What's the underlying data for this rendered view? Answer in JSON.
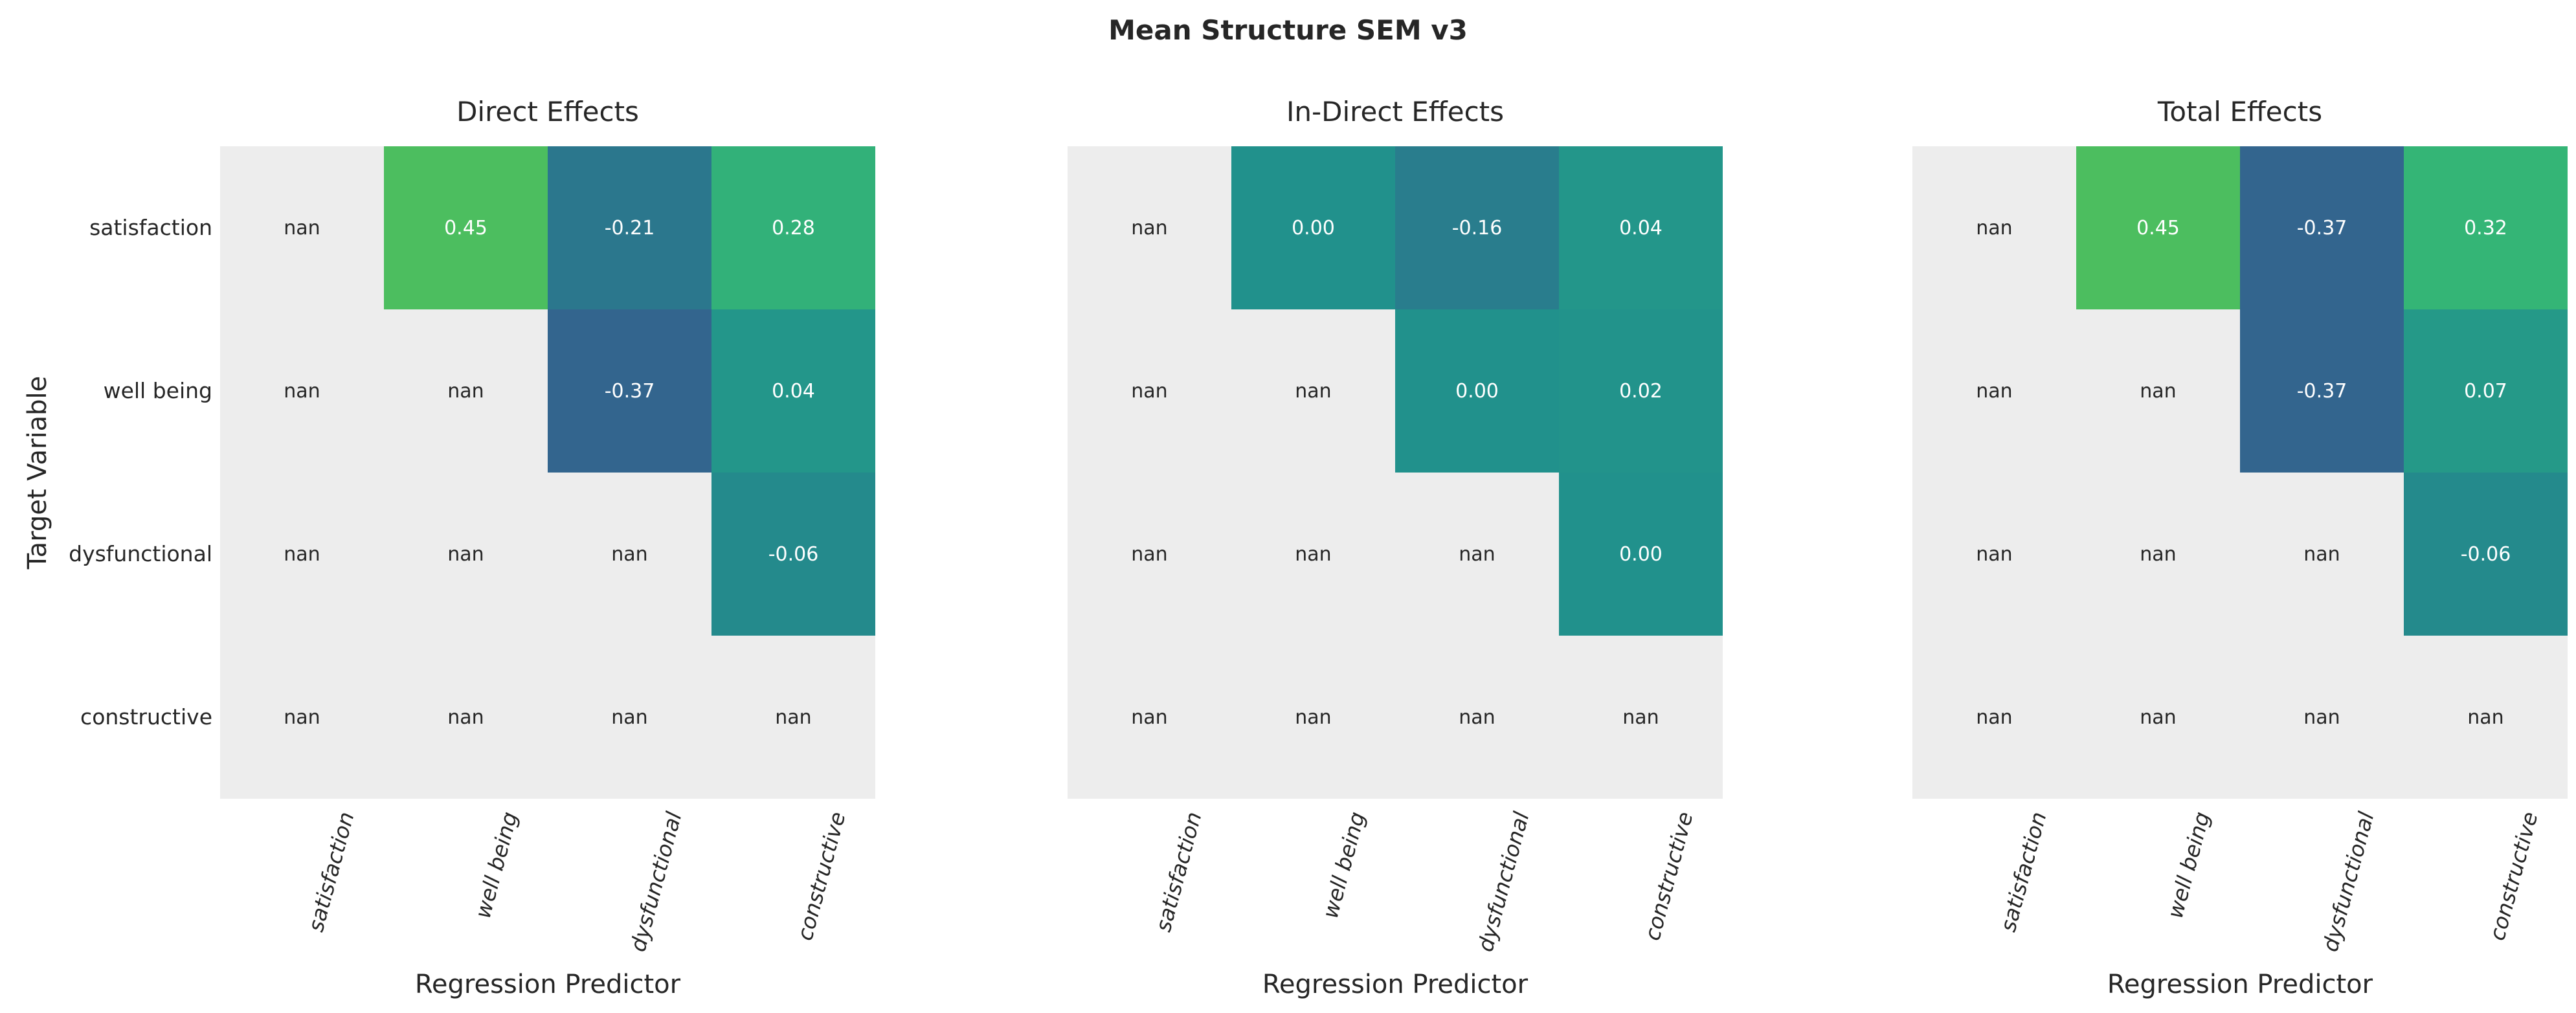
{
  "figure": {
    "title": "Mean Structure SEM v3",
    "xlabel": "Regression Predictor",
    "ylabel": "Target Variable"
  },
  "chart_data": [
    {
      "type": "heatmap",
      "title": "Direct Effects",
      "xlabel": "Regression Predictor",
      "ylabel": "Target Variable",
      "x_categories": [
        "satisfaction",
        "well being",
        "dysfunctional",
        "constructive"
      ],
      "y_categories": [
        "satisfaction",
        "well being",
        "dysfunctional",
        "constructive"
      ],
      "values": [
        [
          null,
          0.45,
          -0.21,
          0.28
        ],
        [
          null,
          null,
          -0.37,
          0.04
        ],
        [
          null,
          null,
          null,
          -0.06
        ],
        [
          null,
          null,
          null,
          null
        ]
      ],
      "cell_labels": [
        [
          "nan",
          "0.45",
          "-0.21",
          "0.28"
        ],
        [
          "nan",
          "nan",
          "-0.37",
          "0.04"
        ],
        [
          "nan",
          "nan",
          "nan",
          "-0.06"
        ],
        [
          "nan",
          "nan",
          "nan",
          "nan"
        ]
      ],
      "cell_colors": [
        [
          null,
          "#4cbe5f",
          "#2b778d",
          "#32b179"
        ],
        [
          null,
          null,
          "#33658e",
          "#23968a"
        ],
        [
          null,
          null,
          null,
          "#248a8c"
        ],
        [
          null,
          null,
          null,
          null
        ]
      ]
    },
    {
      "type": "heatmap",
      "title": "In-Direct Effects",
      "xlabel": "Regression Predictor",
      "ylabel": "Target Variable",
      "x_categories": [
        "satisfaction",
        "well being",
        "dysfunctional",
        "constructive"
      ],
      "y_categories": [
        "satisfaction",
        "well being",
        "dysfunctional",
        "constructive"
      ],
      "values": [
        [
          null,
          0.0,
          -0.16,
          0.04
        ],
        [
          null,
          null,
          0.0,
          0.02
        ],
        [
          null,
          null,
          null,
          0.0
        ],
        [
          null,
          null,
          null,
          null
        ]
      ],
      "cell_labels": [
        [
          "nan",
          "0.00",
          "-0.16",
          "0.04"
        ],
        [
          "nan",
          "nan",
          "0.00",
          "0.02"
        ],
        [
          "nan",
          "nan",
          "nan",
          "0.00"
        ],
        [
          "nan",
          "nan",
          "nan",
          "nan"
        ]
      ],
      "cell_colors": [
        [
          null,
          "#21918c",
          "#297d8d",
          "#23968a"
        ],
        [
          null,
          null,
          "#21918c",
          "#22938b"
        ],
        [
          null,
          null,
          null,
          "#21918c"
        ],
        [
          null,
          null,
          null,
          null
        ]
      ]
    },
    {
      "type": "heatmap",
      "title": "Total Effects",
      "xlabel": "Regression Predictor",
      "ylabel": "Target Variable",
      "x_categories": [
        "satisfaction",
        "well being",
        "dysfunctional",
        "constructive"
      ],
      "y_categories": [
        "satisfaction",
        "well being",
        "dysfunctional",
        "constructive"
      ],
      "values": [
        [
          null,
          0.45,
          -0.37,
          0.32
        ],
        [
          null,
          null,
          -0.37,
          0.07
        ],
        [
          null,
          null,
          null,
          -0.06
        ],
        [
          null,
          null,
          null,
          null
        ]
      ],
      "cell_labels": [
        [
          "nan",
          "0.45",
          "-0.37",
          "0.32"
        ],
        [
          "nan",
          "nan",
          "-0.37",
          "0.07"
        ],
        [
          "nan",
          "nan",
          "nan",
          "-0.06"
        ],
        [
          "nan",
          "nan",
          "nan",
          "nan"
        ]
      ],
      "cell_colors": [
        [
          null,
          "#4cbe5f",
          "#33658e",
          "#34b576"
        ],
        [
          null,
          null,
          "#33658e",
          "#259988"
        ],
        [
          null,
          null,
          null,
          "#248a8c"
        ],
        [
          null,
          null,
          null,
          null
        ]
      ]
    }
  ],
  "colors": {
    "figure_bg": "#ffffff",
    "panel_bg": "#ededed",
    "nan_text": "#262626",
    "value_text": "#ffffff",
    "title_text": "#262626",
    "colormap": "viridis"
  },
  "layout_hints": {
    "legend": "none",
    "grid": "off",
    "x_tick_rotation_deg": 75,
    "x_tick_style": "italic"
  }
}
